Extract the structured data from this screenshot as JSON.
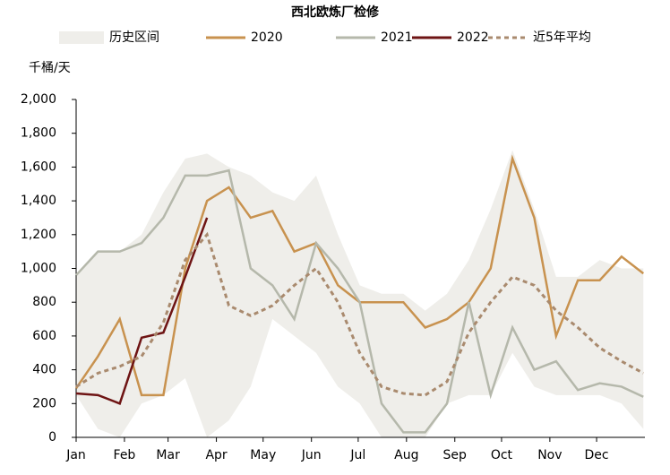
{
  "chart_data": {
    "type": "line",
    "title": "西北欧炼厂检修",
    "ylabel": "千桶/天",
    "x": [
      0,
      14,
      28,
      42,
      56,
      70,
      84,
      98,
      112,
      126,
      140,
      154,
      168,
      182,
      196,
      210,
      224,
      238,
      252,
      266,
      280,
      294,
      308,
      322,
      336,
      350,
      364
    ],
    "xlim": [
      0,
      365
    ],
    "xticks": [
      {
        "value": 0,
        "label": "Jan"
      },
      {
        "value": 31,
        "label": "Feb"
      },
      {
        "value": 59,
        "label": "Mar"
      },
      {
        "value": 90,
        "label": "Apr"
      },
      {
        "value": 120,
        "label": "May"
      },
      {
        "value": 151,
        "label": "Jun"
      },
      {
        "value": 181,
        "label": "Jul"
      },
      {
        "value": 212,
        "label": "Aug"
      },
      {
        "value": 243,
        "label": "Sep"
      },
      {
        "value": 273,
        "label": "Oct"
      },
      {
        "value": 304,
        "label": "Nov"
      },
      {
        "value": 334,
        "label": "Dec"
      }
    ],
    "ylim": [
      0,
      2000
    ],
    "yticks": [
      0,
      200,
      400,
      600,
      800,
      {
        "value": 1000,
        "label": "1,000"
      },
      {
        "value": 1200,
        "label": "1,200"
      },
      {
        "value": 1400,
        "label": "1,400"
      },
      {
        "value": 1600,
        "label": "1,600"
      },
      {
        "value": 1800,
        "label": "1,800"
      },
      {
        "value": 2000,
        "label": "2,000"
      }
    ],
    "grid": false,
    "band": {
      "name": "历史区间",
      "color": "#efeeea",
      "low": [
        250,
        50,
        0,
        200,
        250,
        350,
        0,
        100,
        300,
        700,
        600,
        500,
        300,
        200,
        0,
        0,
        0,
        200,
        250,
        250,
        500,
        300,
        250,
        250,
        250,
        200,
        50
      ],
      "high": [
        960,
        1100,
        1100,
        1200,
        1450,
        1650,
        1680,
        1600,
        1550,
        1450,
        1400,
        1550,
        1200,
        900,
        850,
        850,
        750,
        850,
        1050,
        1350,
        1700,
        1350,
        950,
        950,
        1050,
        1000,
        1000
      ]
    },
    "series": [
      {
        "name": "2020",
        "color": "#c8924f",
        "dash": false,
        "values": [
          290,
          480,
          700,
          250,
          250,
          1000,
          1400,
          1480,
          1300,
          1340,
          1100,
          1150,
          900,
          800,
          800,
          800,
          650,
          700,
          800,
          1000,
          1650,
          1300,
          600,
          930,
          930,
          1070,
          970
        ]
      },
      {
        "name": "2021",
        "color": "#b5b8ab",
        "dash": false,
        "values": [
          960,
          1100,
          1100,
          1150,
          1300,
          1550,
          1550,
          1580,
          1000,
          900,
          700,
          1150,
          1000,
          800,
          200,
          30,
          30,
          200,
          800,
          250,
          650,
          400,
          450,
          280,
          320,
          300,
          240
        ]
      },
      {
        "name": "2022",
        "color": "#6e1414",
        "dash": false,
        "values": [
          260,
          250,
          200,
          590,
          620,
          950,
          1300,
          null,
          null,
          null,
          null,
          null,
          null,
          null,
          null,
          null,
          null,
          null,
          null,
          null,
          null,
          null,
          null,
          null,
          null,
          null,
          null
        ]
      },
      {
        "name": "近5年平均",
        "color": "#a98a6e",
        "dash": true,
        "values": [
          300,
          380,
          420,
          480,
          680,
          1050,
          1200,
          780,
          720,
          780,
          900,
          1000,
          800,
          500,
          300,
          260,
          250,
          330,
          620,
          800,
          950,
          900,
          750,
          650,
          530,
          450,
          380
        ]
      }
    ]
  }
}
